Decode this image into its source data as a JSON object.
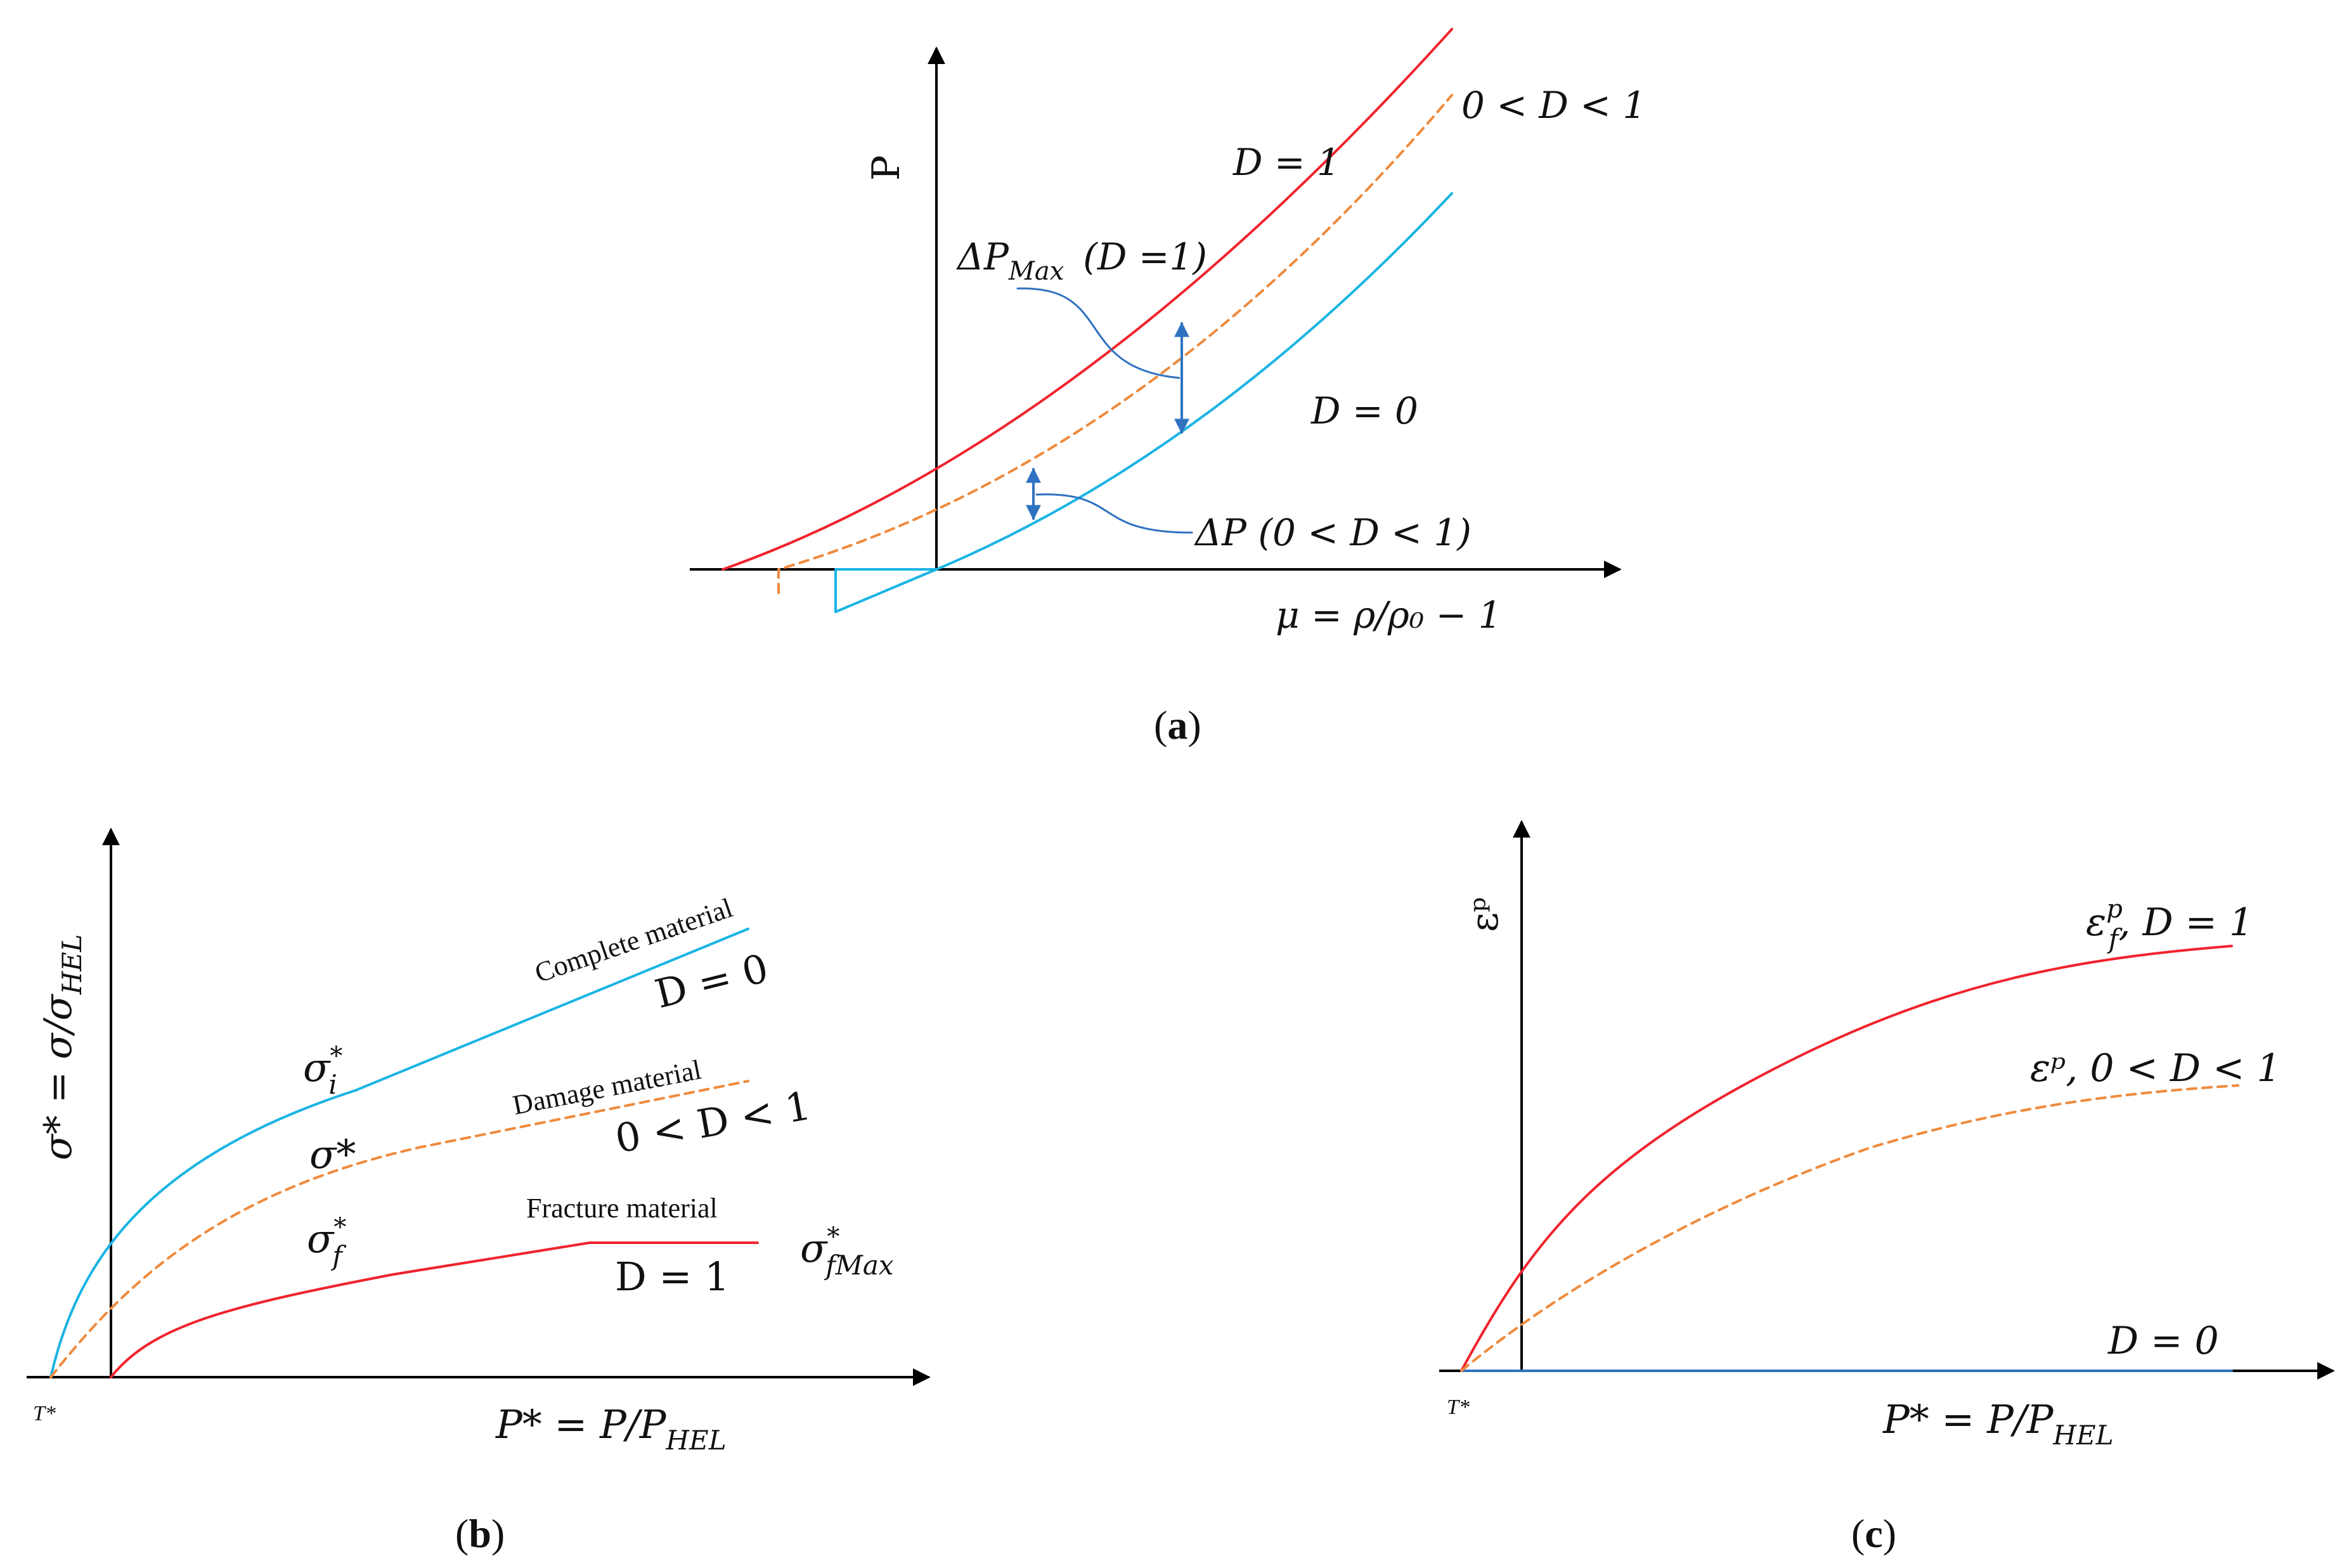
{
  "colors": {
    "d1": "#f0232d",
    "d0": "#1ab4e4",
    "dmid": "#ef8a3c",
    "marker": "#2f72c0",
    "axis": "#000000"
  },
  "panel_a": {
    "y_axis_label": "P",
    "x_axis_label": "μ = ρ/ρ₀ − 1",
    "curve_d1_label": "D = 1",
    "curve_dmid_label": "0 < D < 1",
    "curve_d0_label": "D = 0",
    "delta_pmax_label_main": "ΔP",
    "delta_pmax_label_sub": "Max",
    "delta_pmax_label_paren": "(D =1)",
    "delta_p_label": "ΔP  (0 < D < 1)",
    "caption_open": "(",
    "caption_letter": "a",
    "caption_close": ")"
  },
  "panel_b": {
    "y_axis_label": "σ* = σ/σ",
    "y_axis_label_sub": "HEL",
    "x_axis_label": "P* = P/P",
    "x_axis_label_sub": "HEL",
    "origin_label": "T*",
    "complete_material": "Complete material",
    "damage_material": "Damage material",
    "fracture_material": "Fracture material",
    "d0_label": "D = 0",
    "dmid_label": "0 < D < 1",
    "d1_label": "D = 1",
    "sigma_i": "σ",
    "sigma_i_sup": "*",
    "sigma_i_sub": "i",
    "sigma_star": "σ*",
    "sigma_f": "σ",
    "sigma_f_sup": "*",
    "sigma_f_sub": "f",
    "sigma_fmax": "σ",
    "sigma_fmax_sup": "*",
    "sigma_fmax_sub": "fMax",
    "caption_open": "(",
    "caption_letter": "b",
    "caption_close": ")"
  },
  "panel_c": {
    "y_axis_label": "εᵖ",
    "x_axis_label": "P* = P/P",
    "x_axis_label_sub": "HEL",
    "origin_label": "T*",
    "eps_f_label": "ε",
    "eps_f_sup": "p",
    "eps_f_sub": "f",
    "eps_f_tail": ", D = 1",
    "eps_mid_label": "εᵖ, 0 < D < 1",
    "d0_label": "D = 0",
    "caption_open": "(",
    "caption_letter": "c",
    "caption_close": ")"
  }
}
